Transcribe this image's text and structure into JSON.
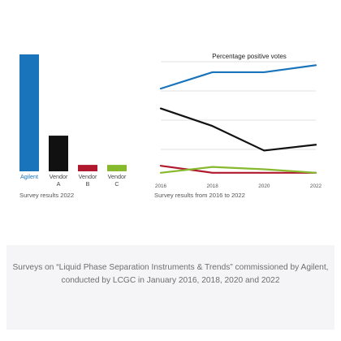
{
  "colors": {
    "agilent": "#1a74bb",
    "vendor_a": "#111111",
    "vendor_b": "#b0182d",
    "vendor_c": "#86b92d",
    "grid": "#d6d6d6",
    "panel": "#f5f5f7"
  },
  "chart_data": [
    {
      "type": "bar",
      "categories": [
        "Agilent",
        "Vendor A",
        "Vendor B",
        "Vendor C"
      ],
      "category_lines": [
        [
          "Agilent"
        ],
        [
          "Vendor",
          "A"
        ],
        [
          "Vendor",
          "B"
        ],
        [
          "Vendor",
          "C"
        ]
      ],
      "values": [
        100,
        30.5,
        5.5,
        5.5
      ],
      "title": "",
      "xlabel": "",
      "ylabel": "",
      "ylim": [
        0,
        100
      ],
      "grid": false,
      "caption": "Survey results 2022"
    },
    {
      "type": "line",
      "title": "Percentage positive votes",
      "x": [
        2016,
        2018,
        2020,
        2022
      ],
      "x_tick_labels": [
        "2016",
        "2018",
        "2020",
        "2022"
      ],
      "ylim": [
        0,
        100
      ],
      "grid": true,
      "series": [
        {
          "color_key": "agilent",
          "values": [
            77,
            91,
            91,
            97
          ]
        },
        {
          "color_key": "vendor_a",
          "values": [
            60,
            45,
            24,
            29
          ]
        },
        {
          "color_key": "vendor_b",
          "values": [
            11,
            5,
            5,
            5
          ]
        },
        {
          "color_key": "vendor_c",
          "values": [
            5,
            10,
            8,
            5
          ]
        }
      ],
      "caption": "Survey results from 2016 to 2022"
    }
  ],
  "footnote": "Surveys on “Liquid Phase Separation Instruments & Trends” commissioned by Agilent, conducted by LCGC in January 2016, 2018, 2020 and 2022"
}
